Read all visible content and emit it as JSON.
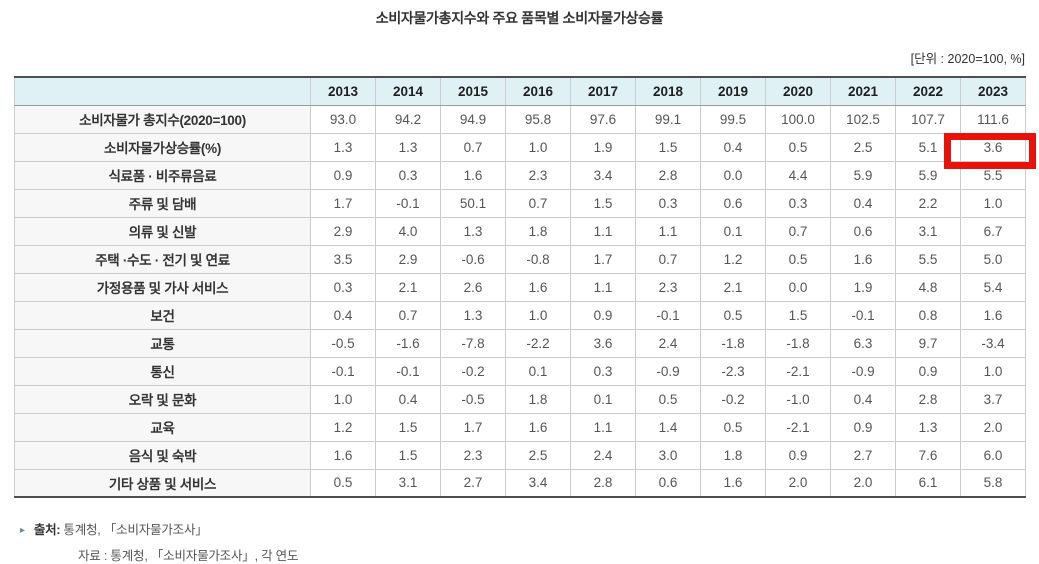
{
  "chart_data": {
    "type": "table",
    "title": "소비자물가총지수와 주요 품목별 소비자물가상승률",
    "unit_label": "[단위 : 2020=100, %]",
    "columns": [
      "2013",
      "2014",
      "2015",
      "2016",
      "2017",
      "2018",
      "2019",
      "2020",
      "2021",
      "2022",
      "2023"
    ],
    "rows": [
      {
        "label": "소비자물가 총지수(2020=100)",
        "values": [
          "93.0",
          "94.2",
          "94.9",
          "95.8",
          "97.6",
          "99.1",
          "99.5",
          "100.0",
          "102.5",
          "107.7",
          "111.6"
        ]
      },
      {
        "label": "소비자물가상승률(%)",
        "values": [
          "1.3",
          "1.3",
          "0.7",
          "1.0",
          "1.9",
          "1.5",
          "0.4",
          "0.5",
          "2.5",
          "5.1",
          "3.6"
        ]
      },
      {
        "label": "식료품 · 비주류음료",
        "values": [
          "0.9",
          "0.3",
          "1.6",
          "2.3",
          "3.4",
          "2.8",
          "0.0",
          "4.4",
          "5.9",
          "5.9",
          "5.5"
        ]
      },
      {
        "label": "주류 및 담배",
        "values": [
          "1.7",
          "-0.1",
          "50.1",
          "0.7",
          "1.5",
          "0.3",
          "0.6",
          "0.3",
          "0.4",
          "2.2",
          "1.0"
        ]
      },
      {
        "label": "의류 및 신발",
        "values": [
          "2.9",
          "4.0",
          "1.3",
          "1.8",
          "1.1",
          "1.1",
          "0.1",
          "0.7",
          "0.6",
          "3.1",
          "6.7"
        ]
      },
      {
        "label": "주택 ·수도 · 전기 및 연료",
        "values": [
          "3.5",
          "2.9",
          "-0.6",
          "-0.8",
          "1.7",
          "0.7",
          "1.2",
          "0.5",
          "1.6",
          "5.5",
          "5.0"
        ]
      },
      {
        "label": "가정용품 및 가사 서비스",
        "values": [
          "0.3",
          "2.1",
          "2.6",
          "1.6",
          "1.1",
          "2.3",
          "2.1",
          "0.0",
          "1.9",
          "4.8",
          "5.4"
        ]
      },
      {
        "label": "보건",
        "values": [
          "0.4",
          "0.7",
          "1.3",
          "1.0",
          "0.9",
          "-0.1",
          "0.5",
          "1.5",
          "-0.1",
          "0.8",
          "1.6"
        ]
      },
      {
        "label": "교통",
        "values": [
          "-0.5",
          "-1.6",
          "-7.8",
          "-2.2",
          "3.6",
          "2.4",
          "-1.8",
          "-1.8",
          "6.3",
          "9.7",
          "-3.4"
        ]
      },
      {
        "label": "통신",
        "values": [
          "-0.1",
          "-0.1",
          "-0.2",
          "0.1",
          "0.3",
          "-0.9",
          "-2.3",
          "-2.1",
          "-0.9",
          "0.9",
          "1.0"
        ]
      },
      {
        "label": "오락 및 문화",
        "values": [
          "1.0",
          "0.4",
          "-0.5",
          "1.8",
          "0.1",
          "0.5",
          "-0.2",
          "-1.0",
          "0.4",
          "2.8",
          "3.7"
        ]
      },
      {
        "label": "교육",
        "values": [
          "1.2",
          "1.5",
          "1.7",
          "1.6",
          "1.1",
          "1.4",
          "0.5",
          "-2.1",
          "0.9",
          "1.3",
          "2.0"
        ]
      },
      {
        "label": "음식 및 숙박",
        "values": [
          "1.6",
          "1.5",
          "2.3",
          "2.5",
          "2.4",
          "3.0",
          "1.8",
          "0.9",
          "2.7",
          "7.6",
          "6.0"
        ]
      },
      {
        "label": "기타 상품 및 서비스",
        "values": [
          "0.5",
          "3.1",
          "2.7",
          "3.4",
          "2.8",
          "0.6",
          "1.6",
          "2.0",
          "2.0",
          "6.1",
          "5.8"
        ]
      }
    ],
    "highlight": {
      "row_label": "소비자물가상승률(%)",
      "column": "2023",
      "value": "3.6"
    },
    "highlight_pos": {
      "row": 1,
      "col": 10
    },
    "legend": "none",
    "grid": "on"
  },
  "footer": {
    "bullet": "▸",
    "source_label": "출처:",
    "source_text": "통계청, 「소비자물가조사」",
    "secondary_note": "자료 : 통계청, 「소비자물가조사」, 각 연도"
  },
  "colors": {
    "header_bg": "#dff1f4",
    "row_label_bg": "#f7f7f7",
    "highlight_red": "#e8120b"
  }
}
